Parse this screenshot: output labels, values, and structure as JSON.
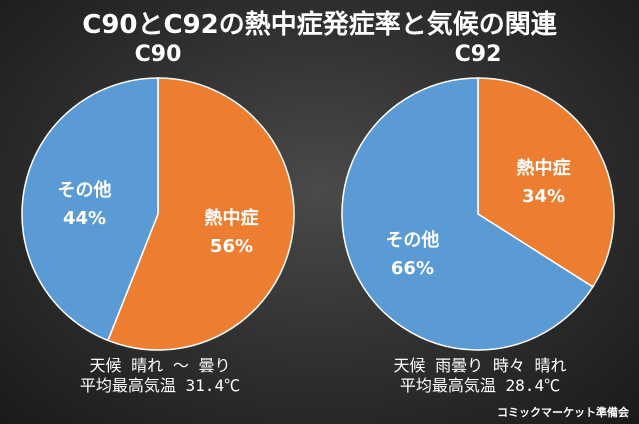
{
  "title": "C90とC92の熱中症発症率と気候の関連",
  "chart_data": [
    {
      "type": "pie",
      "title": "C90",
      "slices": [
        {
          "label": "熱中症",
          "value": 56,
          "value_text": "56%",
          "color": "#ED7D31"
        },
        {
          "label": "その他",
          "value": 44,
          "value_text": "44%",
          "color": "#5B9BD5"
        }
      ],
      "weather": "天候 晴れ ～ 曇り",
      "temperature": "平均最高気温 31.4℃"
    },
    {
      "type": "pie",
      "title": "C92",
      "slices": [
        {
          "label": "熱中症",
          "value": 34,
          "value_text": "34%",
          "color": "#ED7D31"
        },
        {
          "label": "その他",
          "value": 66,
          "value_text": "66%",
          "color": "#5B9BD5"
        }
      ],
      "weather": "天候 雨曇り 時々 晴れ",
      "temperature": "平均最高気温 28.4℃"
    }
  ],
  "credit": "コミックマーケット準備会"
}
